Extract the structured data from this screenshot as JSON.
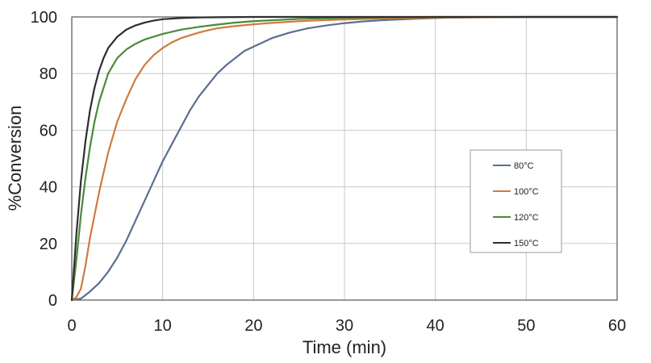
{
  "chart_data": {
    "type": "line",
    "xlabel": "Time (min)",
    "ylabel": "%Conversion",
    "xlim": [
      0,
      60
    ],
    "ylim": [
      0,
      100
    ],
    "xticks": [
      0,
      10,
      20,
      30,
      40,
      50,
      60
    ],
    "yticks": [
      0,
      20,
      40,
      60,
      80,
      100
    ],
    "grid": true,
    "legend_position": "right",
    "series": [
      {
        "name": "80°C",
        "color": "#5a6f8f",
        "x": [
          0,
          1,
          2,
          3,
          4,
          5,
          6,
          7,
          8,
          9,
          10,
          11,
          12,
          13,
          14,
          15,
          16,
          17,
          18,
          19,
          20,
          22,
          24,
          26,
          28,
          30,
          32,
          34,
          36,
          38,
          40,
          42,
          45,
          50,
          55,
          60
        ],
        "y": [
          0,
          0.5,
          3,
          6,
          10,
          15,
          21,
          28,
          35,
          42,
          49,
          55,
          61,
          67,
          72,
          76,
          80,
          83,
          85.5,
          88,
          89.5,
          92.5,
          94.5,
          96,
          97,
          97.8,
          98.4,
          98.8,
          99.1,
          99.4,
          99.6,
          99.8,
          99.9,
          100,
          100,
          100
        ]
      },
      {
        "name": "100°C",
        "color": "#d07a40",
        "x": [
          0,
          0.5,
          1,
          1.5,
          2,
          2.5,
          3,
          3.5,
          4,
          5,
          6,
          7,
          8,
          9,
          10,
          11,
          12,
          13,
          14,
          15,
          16,
          18,
          20,
          22,
          25,
          28,
          30,
          35,
          40,
          45,
          50,
          55,
          60
        ],
        "y": [
          0,
          1,
          4,
          12,
          22,
          30,
          38,
          45,
          52,
          63,
          71,
          78,
          83,
          86.5,
          89,
          91,
          92.5,
          93.5,
          94.5,
          95.3,
          96,
          96.8,
          97.4,
          97.9,
          98.5,
          98.9,
          99.1,
          99.5,
          99.7,
          99.85,
          100,
          100,
          100
        ]
      },
      {
        "name": "120°C",
        "color": "#4a8a3c",
        "x": [
          0,
          0.5,
          1,
          1.5,
          2,
          2.5,
          3,
          4,
          5,
          6,
          7,
          8,
          9,
          10,
          12,
          14,
          16,
          18,
          20,
          25,
          30,
          35,
          40,
          50,
          60
        ],
        "y": [
          0,
          14,
          30,
          43,
          54,
          63,
          70,
          80,
          85.5,
          88.5,
          90.5,
          92,
          93,
          94,
          95.5,
          96.5,
          97.3,
          98,
          98.5,
          99.3,
          99.7,
          99.9,
          100,
          100,
          100
        ]
      },
      {
        "name": "150°C",
        "color": "#2e2e2e",
        "x": [
          0,
          0.5,
          1,
          1.5,
          2,
          2.5,
          3,
          3.5,
          4,
          5,
          6,
          7,
          8,
          9,
          10,
          12,
          14,
          16,
          20,
          30,
          40,
          50,
          60
        ],
        "y": [
          0,
          23,
          42,
          56,
          67,
          75,
          81,
          85.5,
          89,
          93,
          95.5,
          97,
          98,
          98.7,
          99.2,
          99.6,
          99.8,
          99.9,
          100,
          100,
          100,
          100,
          100
        ]
      }
    ]
  }
}
